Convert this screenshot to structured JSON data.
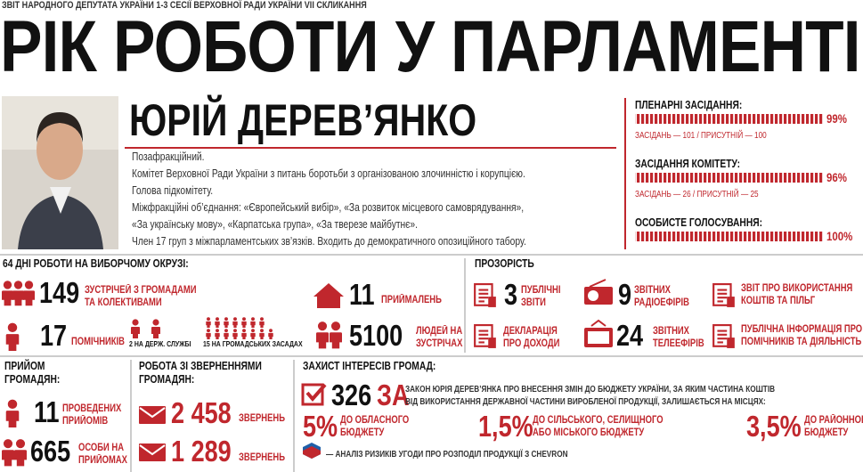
{
  "header": {
    "subtitle": "ЗВІТ НАРОДНОГО ДЕПУТАТА УКРАЇНИ 1-3 СЕСІЇ ВЕРХОВНОЇ РАДИ УКРАЇНИ VII СКЛИКАННЯ",
    "title": "РІК РОБОТИ У ПАРЛАМЕНТІ"
  },
  "deputy": {
    "name": "ЮРІЙ ДЕРЕВ’ЯНКО",
    "bio": [
      "Позафракційний.",
      "Комітет Верховної Ради України з питань боротьби з організованою злочинністю і корупцією.",
      "Голова підкомітету.",
      "Міжфракційні об’єднання: «Європейський вибір», «За розвиток місцевого самоврядування»,",
      "«За українську мову», «Карпатська група», «За тверезе майбутнє».",
      "Член 17 груп з міжпарламентських зв’язків. Входить до демократичного опозиційного табору."
    ]
  },
  "attendance": [
    {
      "title": "ПЛЕНАРНІ ЗАСІДАННЯ:",
      "percent": "99%",
      "details": "ЗАСІДАНЬ — 101 / ПРИСУТНІЙ — 100"
    },
    {
      "title": "ЗАСІДАННЯ КОМІТЕТУ:",
      "percent": "96%",
      "details": "ЗАСІДАНЬ — 26 / ПРИСУТНІЙ — 25"
    },
    {
      "title": "ОСОБИСТЕ ГОЛОСУВАННЯ:",
      "percent": "100%"
    }
  ],
  "district": {
    "title": "64 ДНІ РОБОТИ НА ВИБОРЧОМУ ОКРУЗІ:",
    "items": [
      {
        "number": "149",
        "label": [
          "ЗУСТРІЧЕЙ З ГРОМАДАМИ",
          "ТА КОЛЕКТИВАМИ"
        ]
      },
      {
        "number": "11",
        "label": [
          "ПРИЙМАЛЕНЬ"
        ]
      },
      {
        "number": "17",
        "label": [
          "ПОМІЧНИКІВ"
        ]
      },
      {
        "number": "5100",
        "label": [
          "ЛЮДЕЙ НА",
          "ЗУСТРІЧАХ"
        ]
      }
    ],
    "assistants": [
      "2 НА ДЕРЖ. СЛУЖБІ",
      "15 НА ГРОМАДСЬКИХ ЗАСАДАХ"
    ]
  },
  "transparency": {
    "title": "ПРОЗОРІСТЬ",
    "items": [
      {
        "number": "3",
        "label": [
          "ПУБЛІЧНІ",
          "ЗВІТИ"
        ]
      },
      {
        "number": "9",
        "label": [
          "ЗВІТНИХ",
          "РАДІОЕФІРІВ"
        ]
      },
      {
        "label": [
          "ЗВІТ ПРО ВИКОРИСТАННЯ",
          "КОШТІВ ТА ПІЛЬГ"
        ]
      },
      {
        "label": [
          "ДЕКЛАРАЦІЯ",
          "ПРО ДОХОДИ"
        ]
      },
      {
        "number": "24",
        "label": [
          "ЗВІТНИХ",
          "ТЕЛЕЕФІРІВ"
        ]
      },
      {
        "label": [
          "ПУБЛІЧНА ІНФОРМАЦІЯ ПРО",
          "ПОМІЧНИКІВ ТА ДІЯЛЬНІСТЬ"
        ]
      }
    ]
  },
  "reception": {
    "title": [
      "ПРИЙОМ",
      "ГРОМАДЯН:"
    ],
    "items": [
      {
        "number": "11",
        "label": [
          "ПРОВЕДЕНИХ",
          "ПРИЙОМІВ"
        ]
      },
      {
        "number": "665",
        "label": [
          "ОСОБИ НА",
          "ПРИЙОМАХ"
        ]
      }
    ]
  },
  "appeals": {
    "title": [
      "РОБОТА ЗІ ЗВЕРНЕННЯМИ",
      "ГРОМАДЯН:"
    ],
    "items": [
      {
        "number": "2 458",
        "label": "ЗВЕРНЕНЬ"
      },
      {
        "number": "1 289",
        "label": "ЗВЕРНЕНЬ"
      }
    ]
  },
  "community": {
    "title": "ЗАХИСТ ІНТЕРЕСІВ ГРОМАД:",
    "votes": "326",
    "votes_word": "ЗА",
    "law": [
      "ЗАКОН ЮРІЯ ДЕРЕВ’ЯНКА ПРО ВНЕСЕННЯ ЗМІН ДО БЮДЖЕТУ УКРАЇНИ, ЗА ЯКИМ ЧАСТИНА КОШТІВ",
      "ВІД ВИКОРИСТАННЯ ДЕРЖАВНОЇ ЧАСТИНИ ВИРОБЛЕНОЇ ПРОДУКЦІЇ, ЗАЛИШАЄТЬСЯ НА МІСЦЯХ:"
    ],
    "shares": [
      {
        "percent": "5%",
        "label": [
          "ДО ОБЛАСНОГО",
          "БЮДЖЕТУ"
        ]
      },
      {
        "percent": "1,5%",
        "label": [
          "ДО СІЛЬСЬКОГО, СЕЛИЩНОГО",
          "АБО МІСЬКОГО БЮДЖЕТУ"
        ]
      },
      {
        "percent": "3,5%",
        "label": [
          "ДО РАЙОННОГО",
          "БЮДЖЕТУ"
        ]
      }
    ],
    "footnote": "— АНАЛІЗ РИЗИКІВ УГОДИ ПРО РОЗПОДІЛ ПРОДУКЦІЇ З CHEVRON"
  }
}
